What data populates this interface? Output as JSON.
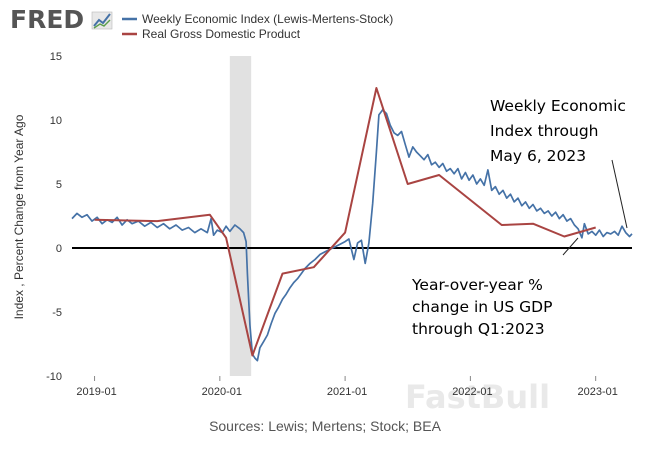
{
  "logo": {
    "text": "FRED",
    "icon": "chart-line-icon",
    "color": "#555555"
  },
  "sources": "Sources: Lewis; Mertens; Stock; BEA",
  "watermark": "FastBull",
  "annotations": [
    {
      "lines": [
        "Weekly Economic",
        "Index through",
        "May 6, 2023"
      ]
    },
    {
      "lines": [
        "Year-over-year %",
        "change in US GDP",
        "through Q1:2023"
      ]
    }
  ],
  "chart_data": {
    "type": "line",
    "title": "",
    "xlabel": "",
    "ylabel": "Index , Percent Change from Year Ago",
    "ylim": [
      -10,
      15
    ],
    "yticks": [
      -10,
      -5,
      0,
      5,
      10,
      15
    ],
    "xlim": [
      2018.82,
      2023.29
    ],
    "xticks": [
      {
        "x": 2019.0,
        "label": "2019-01"
      },
      {
        "x": 2020.0,
        "label": "2020-01"
      },
      {
        "x": 2021.0,
        "label": "2021-01"
      },
      {
        "x": 2022.0,
        "label": "2022-01"
      },
      {
        "x": 2023.0,
        "label": "2023-01"
      }
    ],
    "recession": [
      2020.08,
      2020.25
    ],
    "series": [
      {
        "name": "Weekly Economic Index (Lewis-Mertens-Stock)",
        "color": "#4572a7",
        "points": [
          [
            2018.82,
            2.3
          ],
          [
            2018.86,
            2.7
          ],
          [
            2018.9,
            2.4
          ],
          [
            2018.94,
            2.6
          ],
          [
            2018.98,
            2.1
          ],
          [
            2019.02,
            2.4
          ],
          [
            2019.06,
            1.9
          ],
          [
            2019.1,
            2.2
          ],
          [
            2019.14,
            2.0
          ],
          [
            2019.18,
            2.4
          ],
          [
            2019.22,
            1.8
          ],
          [
            2019.26,
            2.2
          ],
          [
            2019.3,
            1.9
          ],
          [
            2019.35,
            2.1
          ],
          [
            2019.4,
            1.7
          ],
          [
            2019.45,
            2.0
          ],
          [
            2019.5,
            1.6
          ],
          [
            2019.55,
            1.9
          ],
          [
            2019.6,
            1.5
          ],
          [
            2019.65,
            1.8
          ],
          [
            2019.7,
            1.4
          ],
          [
            2019.75,
            1.6
          ],
          [
            2019.8,
            1.2
          ],
          [
            2019.85,
            1.5
          ],
          [
            2019.9,
            1.2
          ],
          [
            2019.93,
            2.3
          ],
          [
            2019.95,
            1.0
          ],
          [
            2019.98,
            1.4
          ],
          [
            2020.02,
            1.2
          ],
          [
            2020.05,
            1.7
          ],
          [
            2020.08,
            1.3
          ],
          [
            2020.12,
            1.8
          ],
          [
            2020.16,
            1.5
          ],
          [
            2020.19,
            1.2
          ],
          [
            2020.21,
            0.5
          ],
          [
            2020.22,
            -2.0
          ],
          [
            2020.24,
            -6.0
          ],
          [
            2020.26,
            -8.3
          ],
          [
            2020.28,
            -8.6
          ],
          [
            2020.3,
            -8.8
          ],
          [
            2020.32,
            -7.8
          ],
          [
            2020.35,
            -7.3
          ],
          [
            2020.38,
            -6.8
          ],
          [
            2020.41,
            -5.9
          ],
          [
            2020.44,
            -5.1
          ],
          [
            2020.47,
            -4.6
          ],
          [
            2020.5,
            -4.0
          ],
          [
            2020.53,
            -3.6
          ],
          [
            2020.56,
            -3.1
          ],
          [
            2020.59,
            -2.7
          ],
          [
            2020.62,
            -2.4
          ],
          [
            2020.65,
            -2.0
          ],
          [
            2020.68,
            -1.6
          ],
          [
            2020.72,
            -1.2
          ],
          [
            2020.76,
            -0.9
          ],
          [
            2020.8,
            -0.5
          ],
          [
            2020.84,
            -0.3
          ],
          [
            2020.88,
            -0.1
          ],
          [
            2020.92,
            0.1
          ],
          [
            2020.96,
            0.3
          ],
          [
            2021.0,
            0.5
          ],
          [
            2021.03,
            0.7
          ],
          [
            2021.07,
            -0.9
          ],
          [
            2021.1,
            0.4
          ],
          [
            2021.13,
            0.6
          ],
          [
            2021.16,
            -1.2
          ],
          [
            2021.19,
            0.4
          ],
          [
            2021.22,
            3.5
          ],
          [
            2021.25,
            7.5
          ],
          [
            2021.27,
            10.4
          ],
          [
            2021.3,
            10.8
          ],
          [
            2021.33,
            10.5
          ],
          [
            2021.36,
            9.6
          ],
          [
            2021.39,
            9.0
          ],
          [
            2021.42,
            8.8
          ],
          [
            2021.45,
            9.1
          ],
          [
            2021.48,
            8.1
          ],
          [
            2021.51,
            7.1
          ],
          [
            2021.54,
            7.9
          ],
          [
            2021.57,
            7.5
          ],
          [
            2021.6,
            7.2
          ],
          [
            2021.63,
            6.9
          ],
          [
            2021.66,
            7.3
          ],
          [
            2021.69,
            6.5
          ],
          [
            2021.72,
            6.7
          ],
          [
            2021.75,
            6.3
          ],
          [
            2021.78,
            6.6
          ],
          [
            2021.81,
            6.0
          ],
          [
            2021.84,
            6.2
          ],
          [
            2021.87,
            5.8
          ],
          [
            2021.9,
            6.2
          ],
          [
            2021.93,
            5.4
          ],
          [
            2021.96,
            5.9
          ],
          [
            2021.99,
            5.3
          ],
          [
            2022.02,
            5.7
          ],
          [
            2022.05,
            5.0
          ],
          [
            2022.08,
            5.4
          ],
          [
            2022.11,
            4.9
          ],
          [
            2022.14,
            6.1
          ],
          [
            2022.17,
            4.5
          ],
          [
            2022.2,
            4.8
          ],
          [
            2022.23,
            4.2
          ],
          [
            2022.26,
            4.5
          ],
          [
            2022.29,
            3.9
          ],
          [
            2022.32,
            4.2
          ],
          [
            2022.35,
            3.6
          ],
          [
            2022.38,
            3.9
          ],
          [
            2022.41,
            3.3
          ],
          [
            2022.44,
            3.6
          ],
          [
            2022.47,
            3.1
          ],
          [
            2022.5,
            3.4
          ],
          [
            2022.53,
            2.9
          ],
          [
            2022.56,
            3.1
          ],
          [
            2022.59,
            2.7
          ],
          [
            2022.62,
            2.9
          ],
          [
            2022.65,
            2.5
          ],
          [
            2022.68,
            2.8
          ],
          [
            2022.71,
            2.3
          ],
          [
            2022.74,
            2.6
          ],
          [
            2022.77,
            2.1
          ],
          [
            2022.8,
            2.3
          ],
          [
            2022.83,
            1.8
          ],
          [
            2022.86,
            1.5
          ],
          [
            2022.89,
            0.8
          ],
          [
            2022.91,
            1.9
          ],
          [
            2022.94,
            1.1
          ],
          [
            2022.97,
            1.3
          ],
          [
            2023.0,
            1.0
          ],
          [
            2023.03,
            1.4
          ],
          [
            2023.06,
            0.9
          ],
          [
            2023.09,
            1.2
          ],
          [
            2023.12,
            1.1
          ],
          [
            2023.15,
            1.3
          ],
          [
            2023.18,
            1.0
          ],
          [
            2023.21,
            1.7
          ],
          [
            2023.24,
            1.2
          ],
          [
            2023.27,
            0.9
          ],
          [
            2023.29,
            1.1
          ]
        ]
      },
      {
        "name": "Real Gross Domestic Product",
        "color": "#a94442",
        "points": [
          [
            2019.0,
            2.2
          ],
          [
            2019.5,
            2.1
          ],
          [
            2019.92,
            2.6
          ],
          [
            2020.05,
            0.8
          ],
          [
            2020.26,
            -8.4
          ],
          [
            2020.5,
            -2.0
          ],
          [
            2020.75,
            -1.5
          ],
          [
            2021.0,
            1.2
          ],
          [
            2021.25,
            12.5
          ],
          [
            2021.5,
            5.0
          ],
          [
            2021.75,
            5.7
          ],
          [
            2022.25,
            1.8
          ],
          [
            2022.5,
            1.9
          ],
          [
            2022.75,
            0.9
          ],
          [
            2023.0,
            1.6
          ]
        ]
      }
    ]
  }
}
